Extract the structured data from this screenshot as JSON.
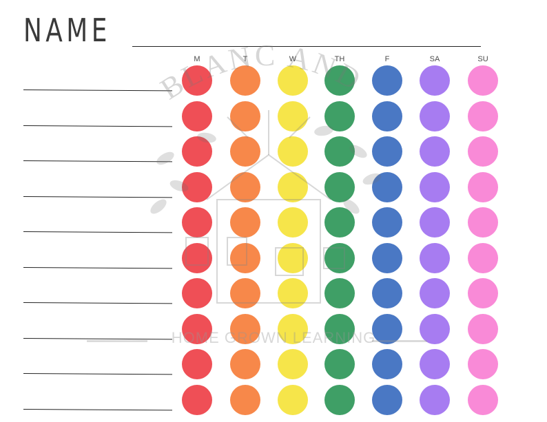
{
  "header": {
    "name_label": "NAME"
  },
  "days": [
    "M",
    "T",
    "W",
    "TH",
    "F",
    "SA",
    "SU"
  ],
  "rows": 10,
  "colors": {
    "M": "#ef4f56",
    "T": "#f7884a",
    "W": "#f6e54a",
    "TH": "#3f9f66",
    "F": "#4a78c4",
    "SA": "#a77cf1",
    "SU": "#f98ad7"
  },
  "watermark": {
    "text": "HOME GROWN LEARNING",
    "arc_text": "LEBLANC AND CO"
  }
}
